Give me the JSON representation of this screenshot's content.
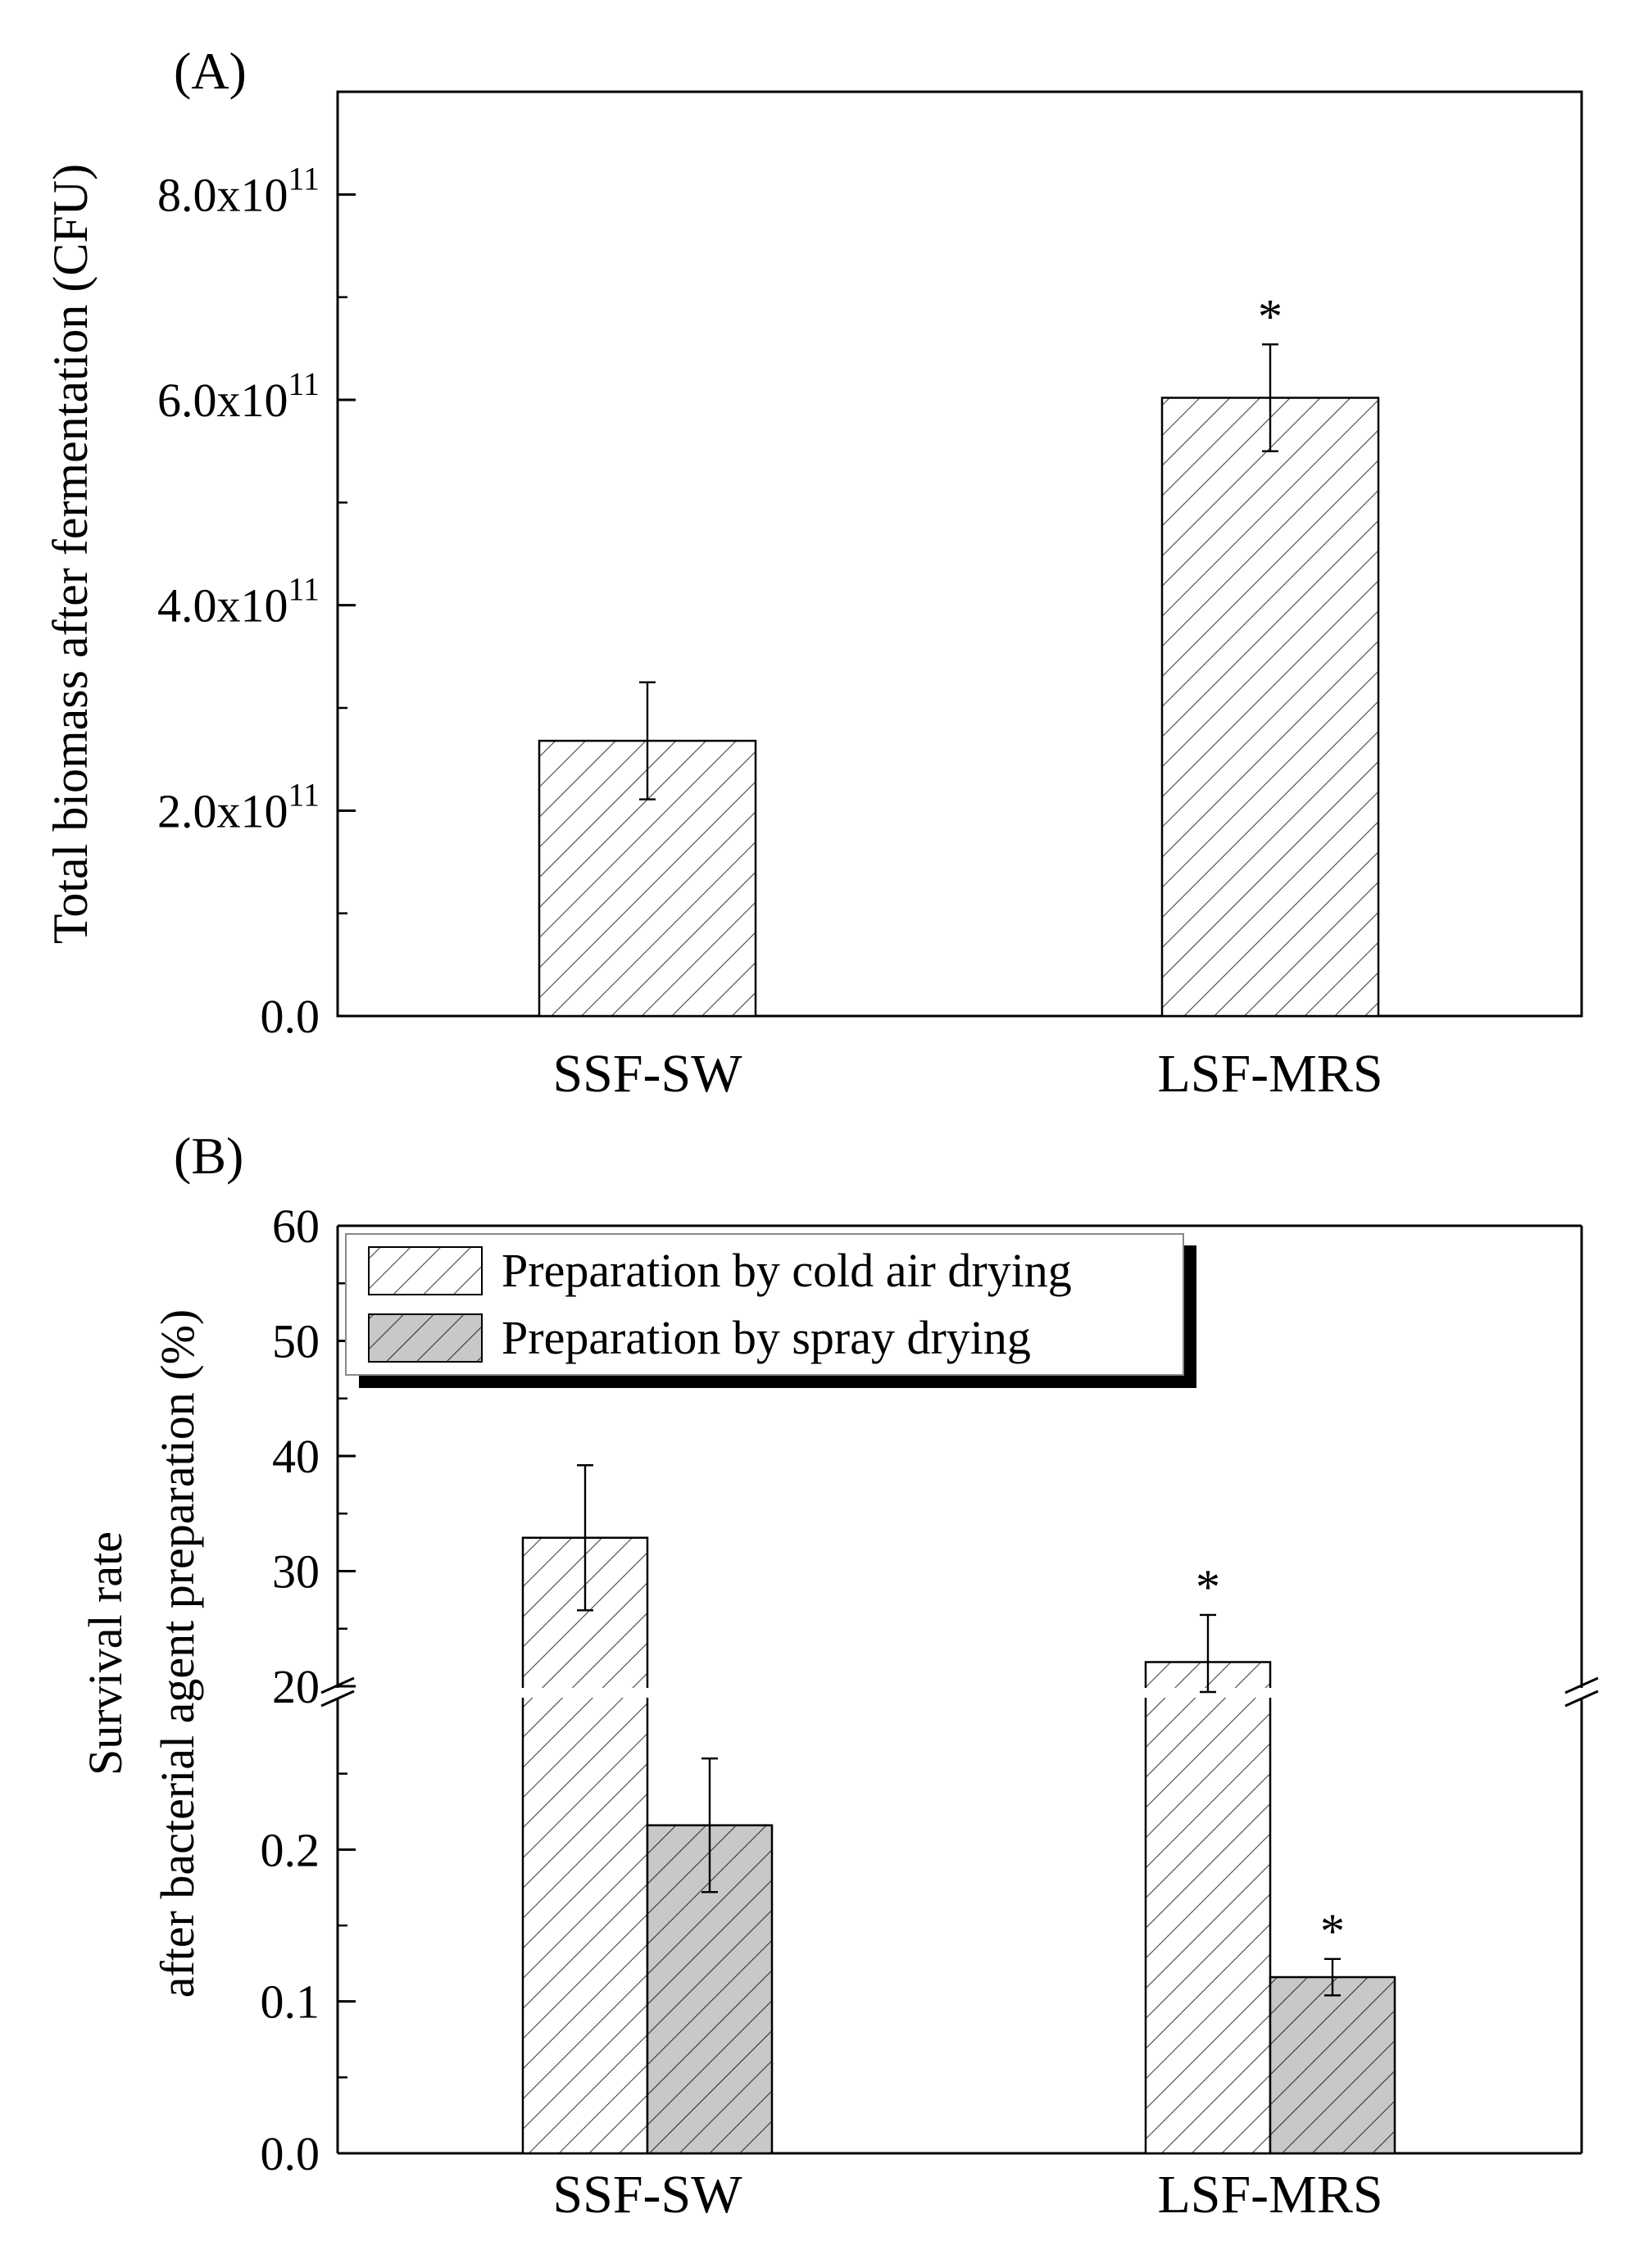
{
  "colors": {
    "hatch_light_bg": "#ffffff",
    "hatch_dark_bg": "#c8c8c8",
    "hatch_line": "#333333",
    "axis": "#000000"
  },
  "chart_data": [
    {
      "panel_label": "(A)",
      "type": "bar",
      "ylabel": "Total biomass after fermentation (CFU)",
      "categories": [
        "SSF-SW",
        "LSF-MRS"
      ],
      "ylim": [
        0,
        900000000000.0
      ],
      "ticks": [
        {
          "value": 0,
          "base": "0.0",
          "exp": ""
        },
        {
          "value": 200000000000.0,
          "base": "2.0x10",
          "exp": "11"
        },
        {
          "value": 400000000000.0,
          "base": "4.0x10",
          "exp": "11"
        },
        {
          "value": 600000000000.0,
          "base": "6.0x10",
          "exp": "11"
        },
        {
          "value": 800000000000.0,
          "base": "8.0x10",
          "exp": "11"
        }
      ],
      "minor_step": 100000000000.0,
      "series": [
        {
          "name": "Total biomass",
          "values": [
            268000000000.0,
            602000000000.0
          ],
          "errors": [
            57000000000.0,
            52000000000.0
          ],
          "fill": "light"
        }
      ],
      "annotations": [
        {
          "category": 1,
          "series": 0,
          "text": "*"
        }
      ]
    },
    {
      "panel_label": "(B)",
      "type": "bar",
      "ylabel_lines": [
        "Survival rate",
        "after bacterial agent preparation (%)"
      ],
      "categories": [
        "SSF-SW",
        "LSF-MRS"
      ],
      "axis_break": {
        "lower": [
          0,
          0.3
        ],
        "upper": [
          20,
          60
        ]
      },
      "ticks_lower": [
        {
          "value": 0.0,
          "label": "0.0"
        },
        {
          "value": 0.1,
          "label": "0.1"
        },
        {
          "value": 0.2,
          "label": "0.2"
        }
      ],
      "ticks_upper": [
        {
          "value": 20,
          "label": "20"
        },
        {
          "value": 30,
          "label": "30"
        },
        {
          "value": 40,
          "label": "40"
        },
        {
          "value": 50,
          "label": "50"
        },
        {
          "value": 60,
          "label": "60"
        }
      ],
      "series": [
        {
          "name": "Preparation by cold air drying",
          "values": [
            32.9,
            22.1
          ],
          "errors": [
            6.3,
            4.1
          ],
          "fill": "light"
        },
        {
          "name": "Preparation by spray drying",
          "values": [
            0.216,
            0.116
          ],
          "errors": [
            0.044,
            0.012
          ],
          "fill": "dark"
        }
      ],
      "annotations": [
        {
          "category": 1,
          "series": 0,
          "text": "*"
        },
        {
          "category": 1,
          "series": 1,
          "text": "*"
        }
      ],
      "legend": {
        "position": "top-left",
        "entries": [
          "Preparation by cold air drying",
          "Preparation by spray drying"
        ]
      }
    }
  ]
}
